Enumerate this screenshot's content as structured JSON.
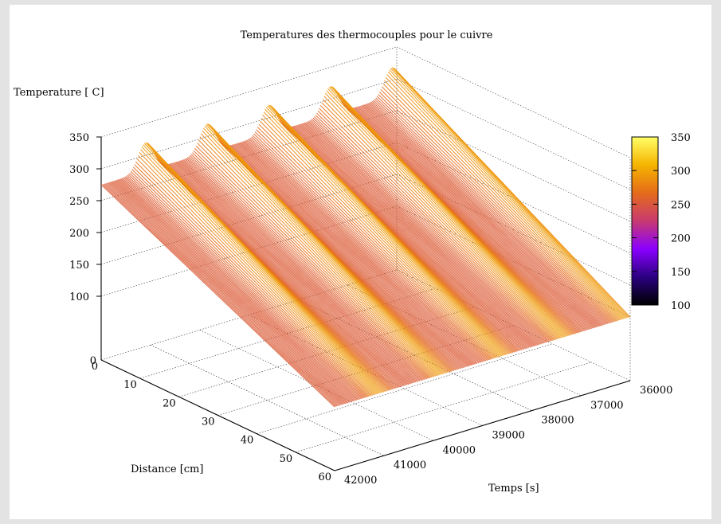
{
  "chart_data": {
    "type": "surface3d",
    "title": "Temperatures des thermocouples pour le cuivre",
    "zlabel": "Temperature [ C]",
    "xlabel": "Distance [cm]",
    "ylabel": "Temps [s]",
    "xlim": [
      0,
      60
    ],
    "ylim": [
      36000,
      42000
    ],
    "zlim": [
      0,
      350
    ],
    "x_ticks": [
      "0",
      "10",
      "20",
      "30",
      "40",
      "50",
      "60"
    ],
    "y_ticks": [
      "36000",
      "37000",
      "38000",
      "39000",
      "40000",
      "41000",
      "42000"
    ],
    "z_ticks": [
      "100",
      "150",
      "200",
      "250",
      "300",
      "350"
    ],
    "colorbar": {
      "min": 100,
      "max": 350,
      "ticks": [
        "100",
        "150",
        "200",
        "250",
        "300",
        "350"
      ]
    },
    "palette": [
      "#000000",
      "#2a0080",
      "#8b00ff",
      "#c83a70",
      "#e56b1a",
      "#f5b400",
      "#ffff66"
    ],
    "grid": true,
    "surface": {
      "distance_cm": [
        0,
        60
      ],
      "time_s": [
        36000,
        42000
      ],
      "temperature_at_0cm_range": [
        275,
        320
      ],
      "temperature_at_60cm": 100,
      "oscillation_peaks_time_s": [
        36100,
        37350,
        38600,
        39850,
        41100
      ]
    }
  }
}
